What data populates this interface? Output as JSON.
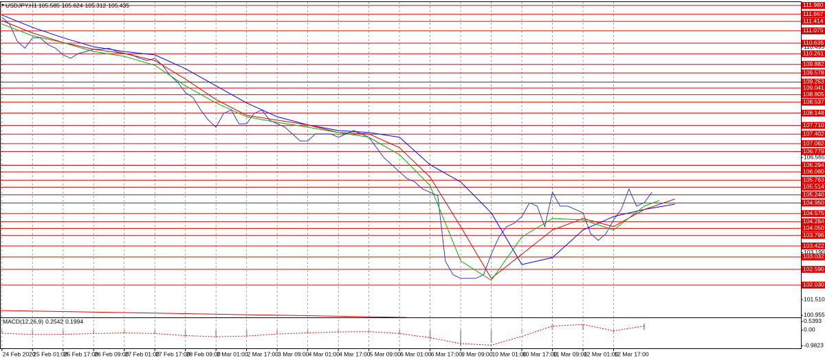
{
  "chart_data": [
    {
      "type": "line",
      "header": {
        "symbol": "USDJPY,H1",
        "open": 105.585,
        "high": 105.624,
        "low": 105.312,
        "close": 105.435
      },
      "xlim": [
        -1,
        418
      ],
      "ylim": [
        100.88,
        112.1
      ],
      "xticks": [
        {
          "value": 0,
          "label": "24 Feb 2020"
        },
        {
          "value": 16,
          "label": "25 Feb 01:00"
        },
        {
          "value": 32,
          "label": "25 Feb 17:00"
        },
        {
          "value": 48,
          "label": "26 Feb 09:00"
        },
        {
          "value": 64,
          "label": "27 Feb 01:00"
        },
        {
          "value": 80,
          "label": "27 Feb 17:00"
        },
        {
          "value": 96,
          "label": "28 Feb 09:00"
        },
        {
          "value": 112,
          "label": "2 Mar 01:00"
        },
        {
          "value": 128,
          "label": "2 Mar 17:00"
        },
        {
          "value": 144,
          "label": "3 Mar 09:00"
        },
        {
          "value": 160,
          "label": "4 Mar 01:00"
        },
        {
          "value": 176,
          "label": "4 Mar 17:00"
        },
        {
          "value": 192,
          "label": "5 Mar 09:00"
        },
        {
          "value": 208,
          "label": "6 Mar 01:00"
        },
        {
          "value": 224,
          "label": "6 Mar 17:00"
        },
        {
          "value": 240,
          "label": "9 Mar 09:00"
        },
        {
          "value": 256,
          "label": "10 Mar 01:00"
        },
        {
          "value": 272,
          "label": "10 Mar 17:00"
        },
        {
          "value": 288,
          "label": "11 Mar 09:00"
        },
        {
          "value": 304,
          "label": "12 Mar 01:00"
        },
        {
          "value": 320,
          "label": "12 Mar 17:00"
        }
      ],
      "yticks": [
        110.495,
        106.565,
        {
          "value": 103.19,
          "label": "103.190"
        },
        {
          "value": 101.51,
          "label": "101.510"
        },
        100.955
      ],
      "levels": [
        {
          "value": 111.98,
          "label": "111.980"
        },
        111.667,
        111.414,
        111.075,
        110.635,
        110.261,
        109.882,
        109.578,
        109.253,
        109.041,
        108.805,
        108.537,
        108.148,
        {
          "value": 107.71,
          "label": "107.710"
        },
        107.402,
        107.062,
        106.779,
        106.294,
        {
          "value": 106.06,
          "label": "106.060"
        },
        105.763,
        105.514,
        {
          "value": 105.24,
          "label": "105.240"
        },
        {
          "value": 104.95,
          "label": "104.950"
        },
        104.575,
        104.284,
        {
          "value": 104.05,
          "label": "104.050"
        },
        103.796,
        103.422,
        103.032,
        {
          "value": 102.59,
          "label": "102.590"
        },
        {
          "value": 102.03,
          "label": "102.030"
        }
      ],
      "level_color": "#e00000",
      "grid": true,
      "series": [
        {
          "color": "#2a3fc8",
          "x": [
            0,
            4,
            8,
            12,
            16,
            20,
            24,
            28,
            32,
            36,
            40,
            44,
            48,
            52,
            56,
            60,
            64,
            68,
            72,
            76,
            80,
            84,
            88,
            92,
            96,
            100,
            104,
            108,
            112,
            116,
            120,
            124,
            128,
            132,
            136,
            140,
            144,
            148,
            152,
            156,
            160,
            164,
            168,
            172,
            176,
            180,
            184,
            188,
            192,
            196,
            200,
            204,
            208,
            212,
            216,
            220,
            224,
            228,
            232,
            236,
            240,
            244,
            248,
            252,
            256,
            260,
            264,
            268,
            272,
            276,
            280,
            284,
            288,
            292,
            296,
            300,
            304,
            308,
            312,
            316,
            320,
            324,
            328,
            332,
            336,
            340
          ],
          "values": [
            111.56,
            111.32,
            110.71,
            110.46,
            110.83,
            110.83,
            110.59,
            110.46,
            110.22,
            110.1,
            110.27,
            110.34,
            110.42,
            110.42,
            110.46,
            110.34,
            110.27,
            110.22,
            110.1,
            110.02,
            110.1,
            109.85,
            109.49,
            109.24,
            108.88,
            108.7,
            108.26,
            107.9,
            107.65,
            108.14,
            108.26,
            107.77,
            107.77,
            108.14,
            108.26,
            107.9,
            107.77,
            107.65,
            107.41,
            107.16,
            107.16,
            107.41,
            107.41,
            107.41,
            107.29,
            107.41,
            107.53,
            107.41,
            107.29,
            106.92,
            106.55,
            106.31,
            106.06,
            105.82,
            105.7,
            105.45,
            105.33,
            105.21,
            102.88,
            102.4,
            102.27,
            102.27,
            102.27,
            102.4,
            103.13,
            103.74,
            104.11,
            104.23,
            104.47,
            104.96,
            104.84,
            104.11,
            105.33,
            104.84,
            104.84,
            104.72,
            104.6,
            103.86,
            103.62,
            103.86,
            104.35,
            104.72,
            105.45,
            104.84,
            104.96,
            105.33
          ]
        },
        {
          "color": "#0000ff",
          "x": [
            0,
            16,
            32,
            48,
            64,
            80,
            96,
            112,
            128,
            144,
            160,
            176,
            192,
            208,
            224,
            240,
            256,
            272,
            288,
            304,
            320,
            336,
            352
          ],
          "values": [
            111.64,
            111.2,
            110.83,
            110.51,
            110.34,
            110.22,
            109.73,
            109.12,
            108.51,
            108.02,
            107.73,
            107.53,
            107.46,
            107.29,
            106.31,
            105.7,
            104.6,
            102.76,
            103.01,
            103.99,
            104.47,
            104.72,
            104.91
          ]
        },
        {
          "color": "#e00000",
          "x": [
            0,
            16,
            32,
            48,
            64,
            80,
            96,
            112,
            128,
            144,
            160,
            176,
            192,
            208,
            224,
            240,
            256,
            272,
            288,
            304,
            320,
            336,
            352
          ],
          "values": [
            111.44,
            111.0,
            110.66,
            110.42,
            110.27,
            110.02,
            109.36,
            108.63,
            108.07,
            107.9,
            107.73,
            107.46,
            107.41,
            106.92,
            105.87,
            104.11,
            102.27,
            103.13,
            103.99,
            104.4,
            104.11,
            104.72,
            105.09
          ]
        },
        {
          "color": "#00b000",
          "x": [
            0,
            16,
            32,
            48,
            64,
            80,
            96,
            112,
            128,
            144,
            160,
            176,
            192,
            208,
            224,
            240,
            256,
            272,
            288,
            304,
            320,
            336,
            344
          ],
          "values": [
            111.32,
            110.9,
            110.66,
            110.34,
            110.17,
            109.85,
            109.12,
            108.51,
            108.02,
            107.82,
            107.65,
            107.46,
            107.29,
            106.67,
            105.57,
            102.89,
            102.2,
            103.74,
            104.4,
            104.35,
            103.99,
            104.84,
            105.04
          ]
        }
      ]
    },
    {
      "type": "bar",
      "title": "MACD(12,26,9)",
      "title_values": [
        0.2542,
        0.1994
      ],
      "xlim": [
        -1,
        418
      ],
      "ylim": [
        -1.15,
        0.75
      ],
      "yticks": [
        0.5393,
        {
          "value": 0,
          "label": "0.00"
        },
        -0.9823
      ],
      "x": [
        0,
        16,
        32,
        48,
        64,
        80,
        96,
        112,
        128,
        144,
        160,
        176,
        192,
        208,
        224,
        240,
        256,
        272,
        288,
        304,
        320,
        336
      ],
      "series": [
        {
          "color": "#a8a8a8",
          "values": [
            -0.15,
            -0.3,
            -0.25,
            -0.2,
            -0.15,
            -0.25,
            -0.4,
            -0.45,
            -0.35,
            -0.2,
            -0.15,
            -0.1,
            -0.1,
            -0.3,
            -0.6,
            -1.0,
            -0.8,
            -0.1,
            0.4,
            0.35,
            -0.15,
            0.4
          ]
        },
        {
          "color": "#e00000",
          "dashed": true,
          "values": [
            -0.2,
            -0.28,
            -0.27,
            -0.22,
            -0.18,
            -0.22,
            -0.35,
            -0.42,
            -0.38,
            -0.25,
            -0.18,
            -0.12,
            -0.1,
            -0.22,
            -0.48,
            -0.85,
            -0.95,
            -0.4,
            0.25,
            0.35,
            -0.05,
            0.25
          ]
        }
      ]
    }
  ]
}
